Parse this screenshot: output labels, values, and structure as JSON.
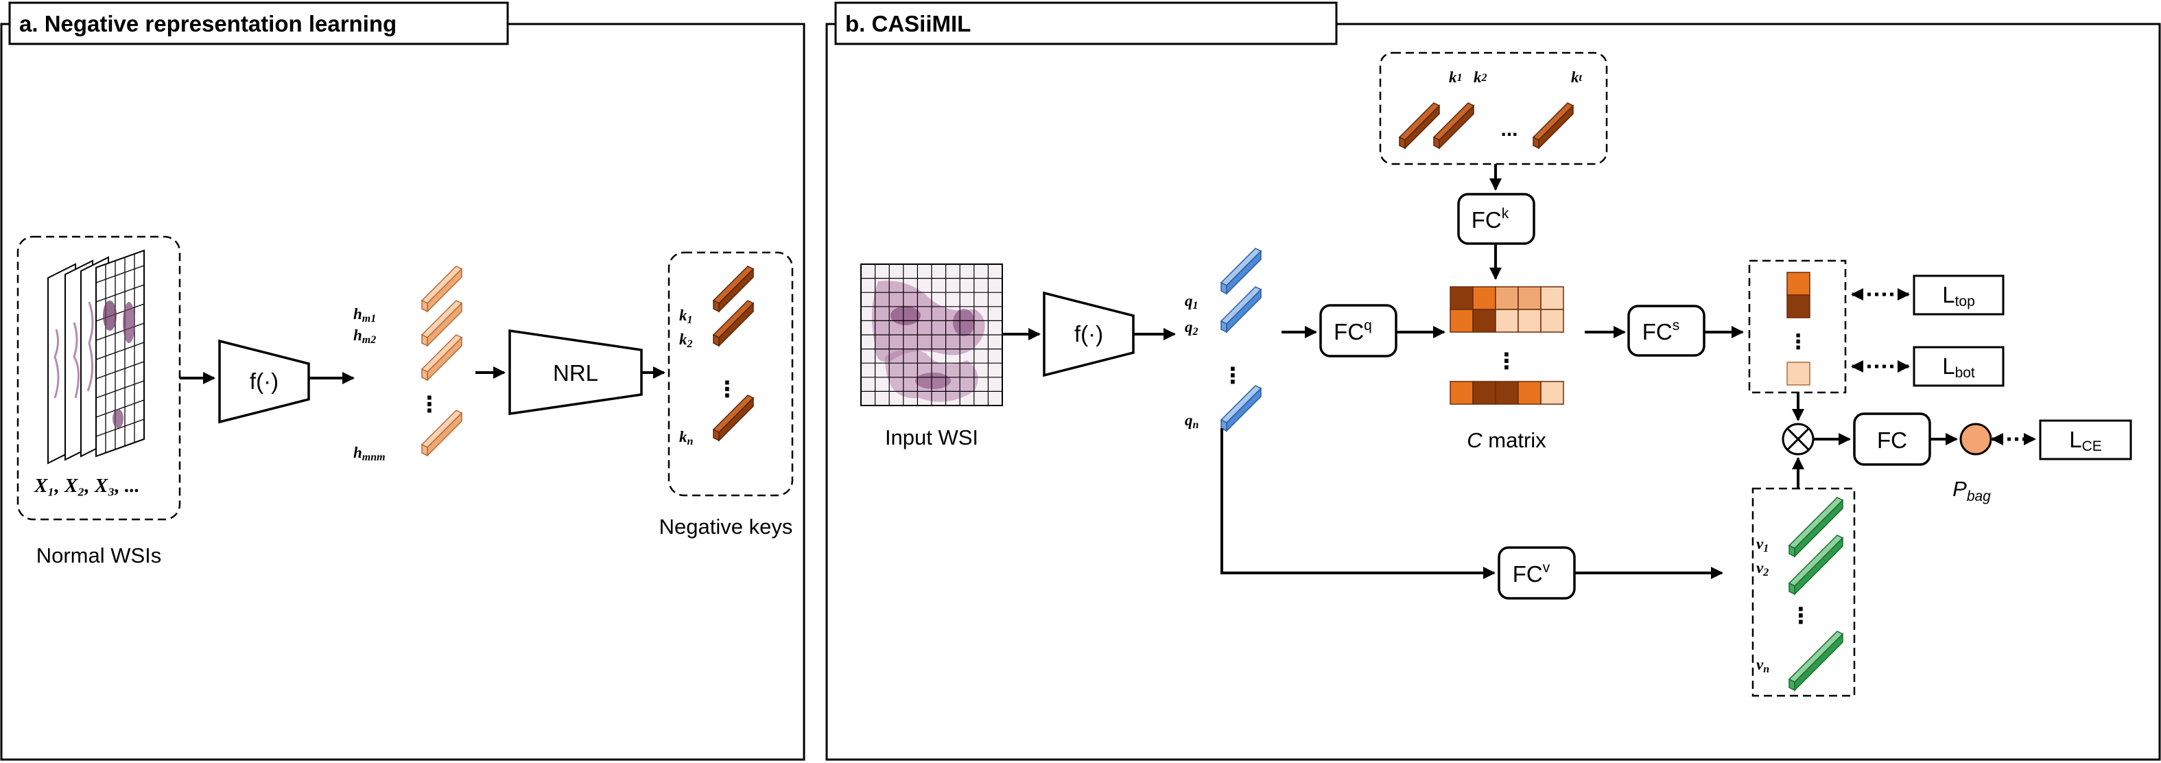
{
  "panel_a": {
    "title": "a. Negative representation learning",
    "normal_wsis_label": "Normal WSIs",
    "wsi_caption": "X₁, X₂, X₃, ...",
    "f_label": "f(·)",
    "h_labels": [
      "h",
      "h",
      "h"
    ],
    "h_subs": [
      "m1",
      "m2",
      "mnm"
    ],
    "nrl_label": "NRL",
    "k_labels": [
      "k",
      "k",
      "k"
    ],
    "k_subs": [
      "1",
      "2",
      "n"
    ],
    "negative_keys_label": "Negative keys",
    "ellipsis": "⋮"
  },
  "panel_b": {
    "title": "b. CASiiMIL",
    "input_wsi_label": "Input WSI",
    "f_label": "f(·)",
    "q_labels": [
      "q",
      "q",
      "q"
    ],
    "q_subs": [
      "1",
      "2",
      "n"
    ],
    "top_k_labels": [
      "k",
      "k",
      "k"
    ],
    "top_k_subs": [
      "1",
      "2",
      "t"
    ],
    "top_ellipsis": "...",
    "fck_label": "FC",
    "fck_sup": "k",
    "fcq_label": "FC",
    "fcq_sup": "q",
    "c_matrix_label_italic": "C",
    "c_matrix_label": " matrix",
    "fcs_label": "FC",
    "fcs_sup": "s",
    "l_top_label": "L",
    "l_top_sub": "top",
    "l_bot_label": "L",
    "l_bot_sub": "bot",
    "fcv_label": "FC",
    "fcv_sup": "v",
    "v_labels": [
      "v",
      "v",
      "v"
    ],
    "v_subs": [
      "1",
      "2",
      "n"
    ],
    "fc_label": "FC",
    "p_bag_label": "P",
    "p_bag_sub": "bag",
    "l_ce_label": "L",
    "l_ce_sub": "CE",
    "ellipsis": "⋮",
    "colors": {
      "orange_dark": "#8c3b0c",
      "orange": "#e8741f",
      "orange_light": "#fbd4b4",
      "peach": "#f0a873",
      "blue": "#4f8ad8",
      "green": "#2e9a4a",
      "p_bag_fill": "#f3a470"
    }
  }
}
